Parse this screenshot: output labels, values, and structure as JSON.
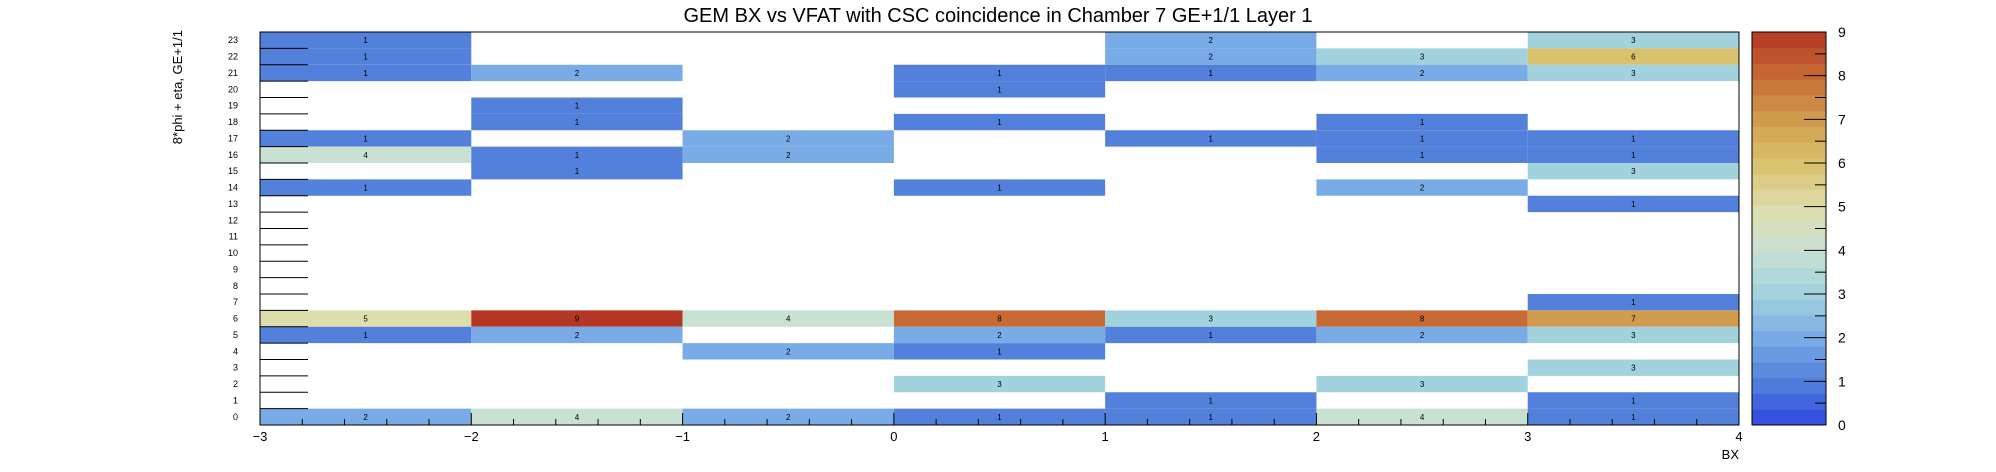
{
  "chart_data": {
    "type": "heatmap",
    "title": "GEM BX vs VFAT with CSC coincidence in Chamber 7 GE+1/1 Layer 1",
    "xlabel": "BX",
    "ylabel": "8*phi + eta, GE+1/1",
    "xlim": [
      -3,
      4
    ],
    "ylim": [
      0,
      24
    ],
    "x_bin_edges": [
      -3,
      -2,
      -1,
      0,
      1,
      2,
      3,
      4
    ],
    "x_ticks": [
      "−3",
      "−2",
      "−1",
      "0",
      "1",
      "2",
      "3",
      "4"
    ],
    "y_ticks": [
      "0",
      "1",
      "2",
      "3",
      "4",
      "5",
      "6",
      "7",
      "8",
      "9",
      "10",
      "11",
      "12",
      "13",
      "14",
      "15",
      "16",
      "17",
      "18",
      "19",
      "20",
      "21",
      "22",
      "23"
    ],
    "z_range": [
      0,
      9
    ],
    "z_ticks": [
      "0",
      "1",
      "2",
      "3",
      "4",
      "5",
      "6",
      "7",
      "8",
      "9"
    ],
    "grid": false,
    "colorbar": "right",
    "cells": [
      {
        "x": -2.5,
        "y": 23,
        "v": 1
      },
      {
        "x": -2.5,
        "y": 22,
        "v": 1
      },
      {
        "x": -2.5,
        "y": 21,
        "v": 1
      },
      {
        "x": -2.5,
        "y": 17,
        "v": 1
      },
      {
        "x": -2.5,
        "y": 16,
        "v": 4
      },
      {
        "x": -2.5,
        "y": 14,
        "v": 1
      },
      {
        "x": -2.5,
        "y": 6,
        "v": 5
      },
      {
        "x": -2.5,
        "y": 5,
        "v": 1
      },
      {
        "x": -2.5,
        "y": 0,
        "v": 2
      },
      {
        "x": -1.5,
        "y": 21,
        "v": 2
      },
      {
        "x": -1.5,
        "y": 19,
        "v": 1
      },
      {
        "x": -1.5,
        "y": 18,
        "v": 1
      },
      {
        "x": -1.5,
        "y": 16,
        "v": 1
      },
      {
        "x": -1.5,
        "y": 15,
        "v": 1
      },
      {
        "x": -1.5,
        "y": 6,
        "v": 9
      },
      {
        "x": -1.5,
        "y": 5,
        "v": 2
      },
      {
        "x": -1.5,
        "y": 0,
        "v": 4
      },
      {
        "x": -0.5,
        "y": 17,
        "v": 2
      },
      {
        "x": -0.5,
        "y": 16,
        "v": 2
      },
      {
        "x": -0.5,
        "y": 6,
        "v": 4
      },
      {
        "x": -0.5,
        "y": 4,
        "v": 2
      },
      {
        "x": -0.5,
        "y": 0,
        "v": 2
      },
      {
        "x": 0.5,
        "y": 21,
        "v": 1
      },
      {
        "x": 0.5,
        "y": 20,
        "v": 1
      },
      {
        "x": 0.5,
        "y": 18,
        "v": 1
      },
      {
        "x": 0.5,
        "y": 14,
        "v": 1
      },
      {
        "x": 0.5,
        "y": 6,
        "v": 8
      },
      {
        "x": 0.5,
        "y": 5,
        "v": 2
      },
      {
        "x": 0.5,
        "y": 4,
        "v": 1
      },
      {
        "x": 0.5,
        "y": 2,
        "v": 3
      },
      {
        "x": 0.5,
        "y": 0,
        "v": 1
      },
      {
        "x": 1.5,
        "y": 23,
        "v": 2
      },
      {
        "x": 1.5,
        "y": 22,
        "v": 2
      },
      {
        "x": 1.5,
        "y": 21,
        "v": 1
      },
      {
        "x": 1.5,
        "y": 17,
        "v": 1
      },
      {
        "x": 1.5,
        "y": 6,
        "v": 3
      },
      {
        "x": 1.5,
        "y": 5,
        "v": 1
      },
      {
        "x": 1.5,
        "y": 1,
        "v": 1
      },
      {
        "x": 1.5,
        "y": 0,
        "v": 1
      },
      {
        "x": 2.5,
        "y": 22,
        "v": 3
      },
      {
        "x": 2.5,
        "y": 21,
        "v": 2
      },
      {
        "x": 2.5,
        "y": 18,
        "v": 1
      },
      {
        "x": 2.5,
        "y": 17,
        "v": 1
      },
      {
        "x": 2.5,
        "y": 16,
        "v": 1
      },
      {
        "x": 2.5,
        "y": 14,
        "v": 2
      },
      {
        "x": 2.5,
        "y": 6,
        "v": 8
      },
      {
        "x": 2.5,
        "y": 5,
        "v": 2
      },
      {
        "x": 2.5,
        "y": 2,
        "v": 3
      },
      {
        "x": 2.5,
        "y": 0,
        "v": 4
      },
      {
        "x": 3.5,
        "y": 23,
        "v": 3
      },
      {
        "x": 3.5,
        "y": 22,
        "v": 6
      },
      {
        "x": 3.5,
        "y": 21,
        "v": 3
      },
      {
        "x": 3.5,
        "y": 17,
        "v": 1
      },
      {
        "x": 3.5,
        "y": 16,
        "v": 1
      },
      {
        "x": 3.5,
        "y": 15,
        "v": 3
      },
      {
        "x": 3.5,
        "y": 13,
        "v": 1
      },
      {
        "x": 3.5,
        "y": 7,
        "v": 1
      },
      {
        "x": 3.5,
        "y": 6,
        "v": 7
      },
      {
        "x": 3.5,
        "y": 5,
        "v": 3
      },
      {
        "x": 3.5,
        "y": 3,
        "v": 3
      },
      {
        "x": 3.5,
        "y": 1,
        "v": 1
      },
      {
        "x": 3.5,
        "y": 0,
        "v": 1
      }
    ]
  }
}
